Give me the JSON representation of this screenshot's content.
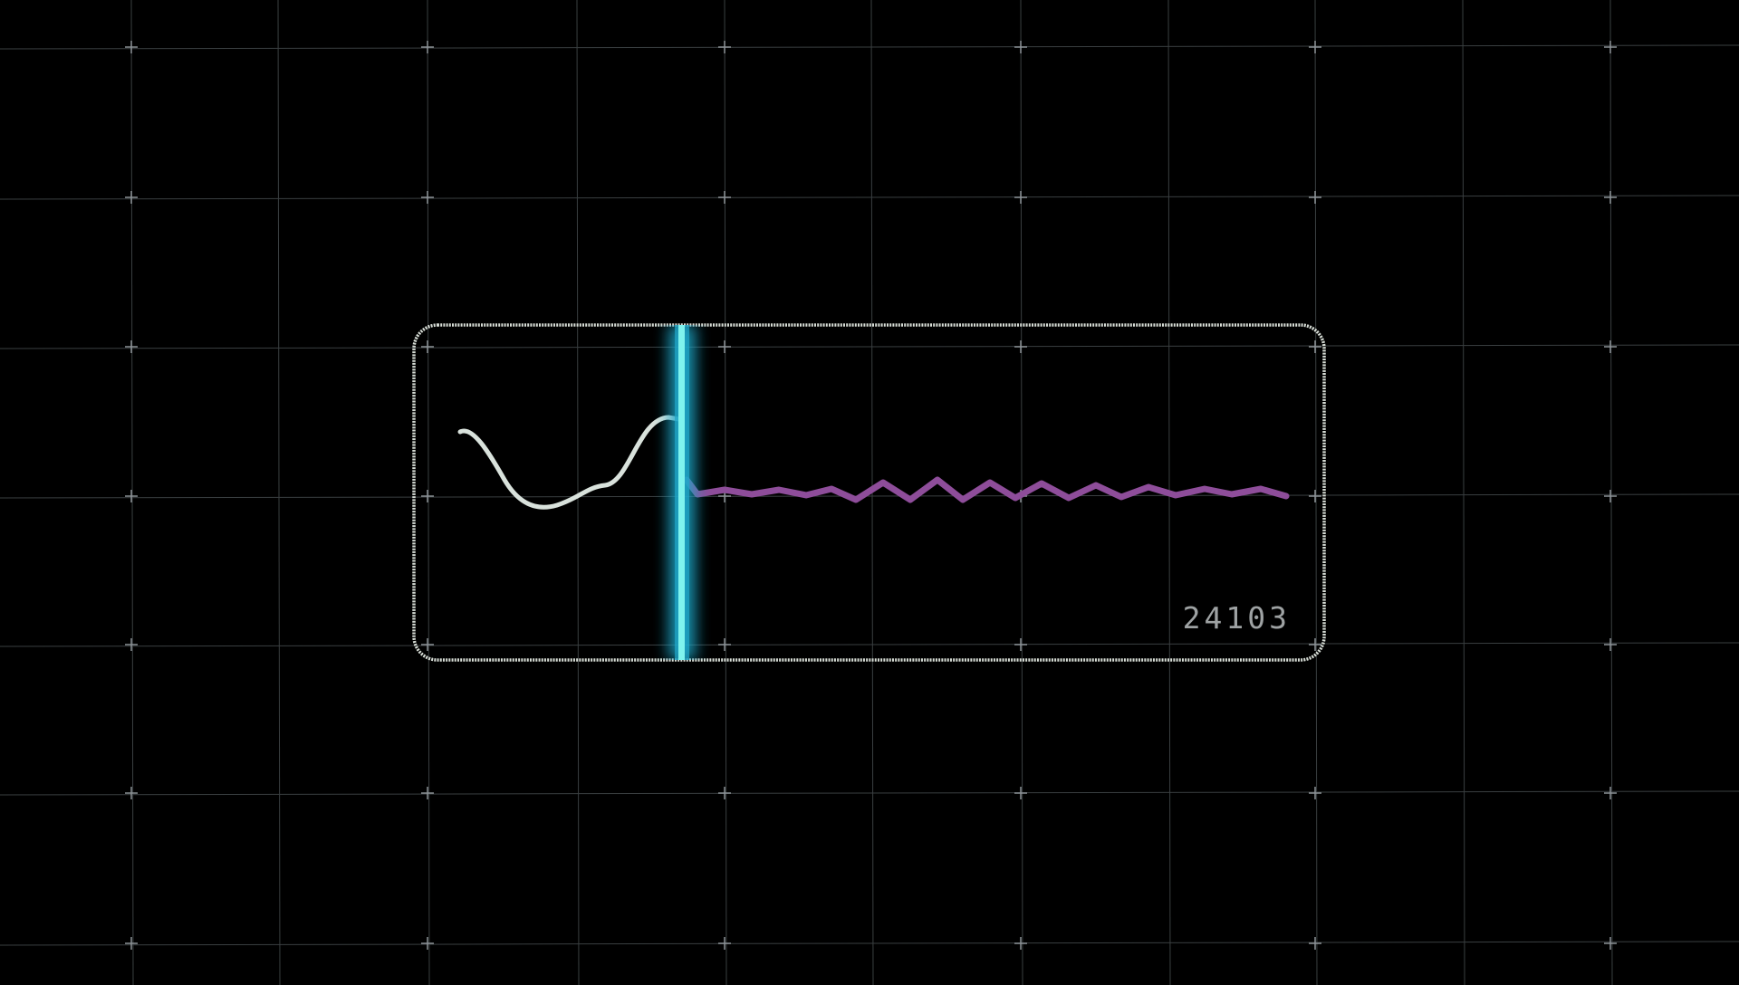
{
  "readout": {
    "counter": "24103"
  },
  "colors": {
    "background": "#000000",
    "grid_line": "#3a3f41",
    "grid_cross": "#8c9297",
    "panel_border": "#d7ddd6",
    "input_wave": "#d9e2dc",
    "output_wave": "#8e4d9a",
    "scanner_core": "#7ff3ee",
    "scanner_glow": "#1fa7c9",
    "counter_text": "#9ea2a3"
  },
  "icons": {
    "grid": "background-grid",
    "scanner": "scanner-beam",
    "input_signal": "smooth-wave",
    "output_signal": "zigzag-wave"
  }
}
